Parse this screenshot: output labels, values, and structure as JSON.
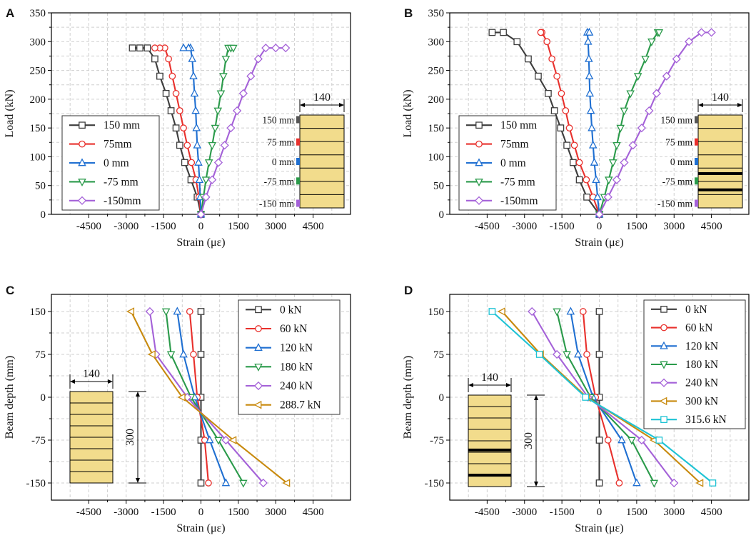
{
  "chart_data": [
    {
      "panel": "A",
      "type": "line",
      "xlabel": "Strain (με)",
      "ylabel": "Load (kN)",
      "xlim": [
        -6000,
        6000
      ],
      "ylim": [
        0,
        350
      ],
      "xticks": [
        -4500,
        -3000,
        -1500,
        0,
        1500,
        3000,
        4500
      ],
      "yticks": [
        0,
        50,
        100,
        150,
        200,
        250,
        300,
        350
      ],
      "legend_position": "left",
      "series": [
        {
          "name": "150 mm",
          "color": "#3d3d3d",
          "marker": "square",
          "x": [
            0,
            -150,
            -400,
            -650,
            -850,
            -1000,
            -1200,
            -1400,
            -1650,
            -1850,
            -2150,
            -2450,
            -2750
          ],
          "y": [
            0,
            30,
            60,
            90,
            120,
            150,
            180,
            210,
            240,
            270,
            289,
            289,
            289
          ]
        },
        {
          "name": "75mm",
          "color": "#e8302c",
          "marker": "circle",
          "x": [
            0,
            -80,
            -200,
            -380,
            -550,
            -700,
            -850,
            -1000,
            -1150,
            -1300,
            -1450,
            -1650,
            -1850
          ],
          "y": [
            0,
            30,
            60,
            90,
            120,
            150,
            180,
            210,
            240,
            270,
            289,
            289,
            289
          ]
        },
        {
          "name": "0 mm",
          "color": "#1f6fd1",
          "marker": "triangle-up",
          "x": [
            0,
            -30,
            -60,
            -100,
            -150,
            -180,
            -210,
            -260,
            -300,
            -350,
            -420,
            -500,
            -700
          ],
          "y": [
            0,
            30,
            60,
            90,
            120,
            150,
            180,
            210,
            240,
            270,
            289,
            289,
            289
          ]
        },
        {
          "name": "-75 mm",
          "color": "#2a9a4a",
          "marker": "triangle-down",
          "x": [
            0,
            100,
            200,
            320,
            450,
            570,
            680,
            800,
            900,
            1000,
            1100,
            1200,
            1300
          ],
          "y": [
            0,
            30,
            60,
            90,
            120,
            150,
            180,
            210,
            240,
            270,
            289,
            289,
            289
          ]
        },
        {
          "name": "-150mm",
          "color": "#a461d8",
          "marker": "diamond",
          "x": [
            0,
            200,
            450,
            700,
            950,
            1200,
            1450,
            1700,
            2000,
            2300,
            2600,
            3000,
            3400
          ],
          "y": [
            0,
            30,
            60,
            90,
            120,
            150,
            180,
            210,
            240,
            270,
            289,
            289,
            289
          ]
        }
      ],
      "inset": {
        "width_label": "140",
        "row_labels": [
          "150 mm",
          "75 mm",
          "0 mm",
          "-75 mm",
          "-150 mm"
        ]
      }
    },
    {
      "panel": "B",
      "type": "line",
      "xlabel": "Strain (με)",
      "ylabel": "Load (kN)",
      "xlim": [
        -6000,
        6000
      ],
      "ylim": [
        0,
        350
      ],
      "xticks": [
        -4500,
        -3000,
        -1500,
        0,
        1500,
        3000,
        4500
      ],
      "yticks": [
        0,
        50,
        100,
        150,
        200,
        250,
        300,
        350
      ],
      "legend_position": "left",
      "series": [
        {
          "name": "150 mm",
          "color": "#3d3d3d",
          "marker": "square",
          "x": [
            0,
            -500,
            -800,
            -1050,
            -1300,
            -1550,
            -1800,
            -2050,
            -2450,
            -2850,
            -3300,
            -3850,
            -4300
          ],
          "y": [
            0,
            30,
            60,
            90,
            120,
            150,
            180,
            210,
            240,
            270,
            300,
            316,
            316
          ]
        },
        {
          "name": "75mm",
          "color": "#e8302c",
          "marker": "circle",
          "x": [
            0,
            -250,
            -520,
            -800,
            -1000,
            -1200,
            -1350,
            -1520,
            -1700,
            -1900,
            -2100,
            -2300,
            -2350
          ],
          "y": [
            0,
            30,
            60,
            90,
            120,
            150,
            180,
            210,
            240,
            270,
            300,
            316,
            316
          ]
        },
        {
          "name": "0 mm",
          "color": "#1f6fd1",
          "marker": "triangle-up",
          "x": [
            0,
            -70,
            -130,
            -200,
            -250,
            -300,
            -340,
            -380,
            -400,
            -420,
            -450,
            -480,
            -400
          ],
          "y": [
            0,
            30,
            60,
            90,
            120,
            150,
            180,
            210,
            240,
            270,
            300,
            316,
            316
          ]
        },
        {
          "name": "-75 mm",
          "color": "#2a9a4a",
          "marker": "triangle-down",
          "x": [
            0,
            200,
            380,
            550,
            700,
            850,
            1000,
            1250,
            1550,
            1850,
            2100,
            2350,
            2400
          ],
          "y": [
            0,
            30,
            60,
            90,
            120,
            150,
            180,
            210,
            240,
            270,
            300,
            316,
            316
          ]
        },
        {
          "name": "-150mm",
          "color": "#a461d8",
          "marker": "diamond",
          "x": [
            0,
            350,
            700,
            1000,
            1350,
            1700,
            2000,
            2300,
            2700,
            3100,
            3600,
            4100,
            4500
          ],
          "y": [
            0,
            30,
            60,
            90,
            120,
            150,
            180,
            210,
            240,
            270,
            300,
            316,
            316
          ]
        }
      ],
      "inset": {
        "width_label": "140",
        "row_labels": [
          "150 mm",
          "75 mm",
          "0 mm",
          "-75 mm",
          "-150 mm"
        ]
      }
    },
    {
      "panel": "C",
      "type": "line",
      "xlabel": "Strain (με)",
      "ylabel": "Beam depth (mm)",
      "xlim": [
        -6000,
        6000
      ],
      "ylim": [
        -180,
        180
      ],
      "xticks": [
        -4500,
        -3000,
        -1500,
        0,
        1500,
        3000,
        4500
      ],
      "yticks": [
        -150,
        -75,
        0,
        75,
        150
      ],
      "legend_position": "right",
      "series": [
        {
          "name": "0 kN",
          "color": "#3d3d3d",
          "marker": "square",
          "x": [
            0,
            0,
            0,
            0,
            0
          ],
          "y": [
            150,
            75,
            0,
            -75,
            -150
          ]
        },
        {
          "name": "60 kN",
          "color": "#e8302c",
          "marker": "circle",
          "x": [
            -450,
            -300,
            -150,
            150,
            300
          ],
          "y": [
            150,
            75,
            0,
            -75,
            -150
          ]
        },
        {
          "name": "120 kN",
          "color": "#1f6fd1",
          "marker": "triangle-up",
          "x": [
            -950,
            -700,
            -250,
            350,
            1000
          ],
          "y": [
            150,
            75,
            0,
            -75,
            -150
          ]
        },
        {
          "name": "180 kN",
          "color": "#2a9a4a",
          "marker": "triangle-down",
          "x": [
            -1400,
            -1200,
            -400,
            700,
            1700
          ],
          "y": [
            150,
            75,
            0,
            -75,
            -150
          ]
        },
        {
          "name": "240 kN",
          "color": "#a461d8",
          "marker": "diamond",
          "x": [
            -2050,
            -1800,
            -550,
            1000,
            2500
          ],
          "y": [
            150,
            75,
            0,
            -75,
            -150
          ]
        },
        {
          "name": "288.7 kN",
          "color": "#c88a0e",
          "marker": "triangle-left",
          "x": [
            -2800,
            -1950,
            -750,
            1300,
            3450
          ],
          "y": [
            150,
            75,
            0,
            -75,
            -150
          ]
        }
      ],
      "inset": {
        "width_label": "140",
        "depth_label": "300"
      }
    },
    {
      "panel": "D",
      "type": "line",
      "xlabel": "Strain (με)",
      "ylabel": "Beam depth (mm)",
      "xlim": [
        -6000,
        6000
      ],
      "ylim": [
        -180,
        180
      ],
      "xticks": [
        -4500,
        -3000,
        -1500,
        0,
        1500,
        3000,
        4500
      ],
      "yticks": [
        -150,
        -75,
        0,
        75,
        150
      ],
      "legend_position": "right",
      "series": [
        {
          "name": "0 kN",
          "color": "#3d3d3d",
          "marker": "square",
          "x": [
            0,
            0,
            0,
            0,
            0
          ],
          "y": [
            150,
            75,
            0,
            -75,
            -150
          ]
        },
        {
          "name": "60 kN",
          "color": "#e8302c",
          "marker": "circle",
          "x": [
            -650,
            -500,
            -150,
            350,
            800
          ],
          "y": [
            150,
            75,
            0,
            -75,
            -150
          ]
        },
        {
          "name": "120 kN",
          "color": "#1f6fd1",
          "marker": "triangle-up",
          "x": [
            -1150,
            -850,
            -250,
            900,
            1500
          ],
          "y": [
            150,
            75,
            0,
            -75,
            -150
          ]
        },
        {
          "name": "180 kN",
          "color": "#2a9a4a",
          "marker": "triangle-down",
          "x": [
            -1700,
            -1300,
            -350,
            1300,
            2200
          ],
          "y": [
            150,
            75,
            0,
            -75,
            -150
          ]
        },
        {
          "name": "240 kN",
          "color": "#a461d8",
          "marker": "diamond",
          "x": [
            -2700,
            -1700,
            -450,
            1700,
            3000
          ],
          "y": [
            150,
            75,
            0,
            -75,
            -150
          ]
        },
        {
          "name": "300 kN",
          "color": "#c88a0e",
          "marker": "triangle-left",
          "x": [
            -3900,
            -2350,
            -500,
            2200,
            4050
          ],
          "y": [
            150,
            75,
            0,
            -75,
            -150
          ]
        },
        {
          "name": "315.6 kN",
          "color": "#1ec3d4",
          "marker": "square",
          "x": [
            -4300,
            -2400,
            -550,
            2400,
            4550
          ],
          "y": [
            150,
            75,
            0,
            -75,
            -150
          ]
        }
      ],
      "inset": {
        "width_label": "140",
        "depth_label": "300"
      }
    }
  ]
}
